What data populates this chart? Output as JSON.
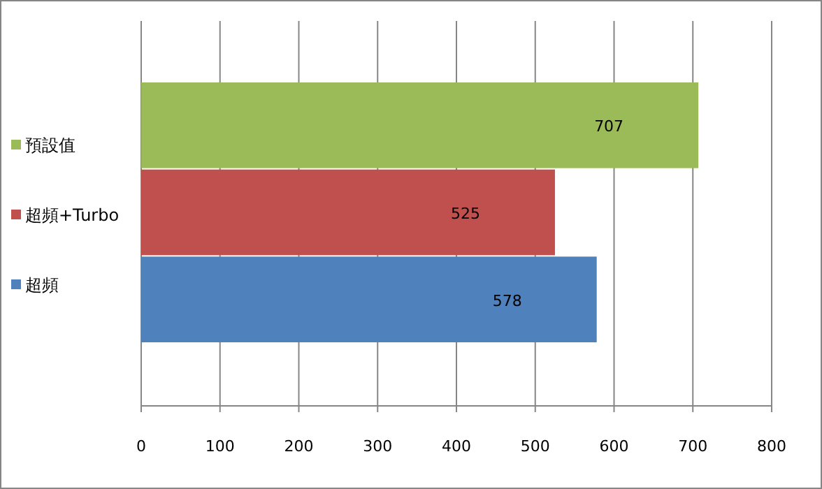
{
  "chart_data": {
    "type": "bar",
    "orientation": "horizontal",
    "categories": [
      null
    ],
    "series": [
      {
        "name": "預設值",
        "color": "#9bbb59",
        "values": [
          707
        ]
      },
      {
        "name": "超頻+Turbo",
        "color": "#c0504d",
        "values": [
          525
        ]
      },
      {
        "name": "超頻",
        "color": "#4f81bd",
        "values": [
          578
        ]
      }
    ],
    "xlim": [
      0,
      800
    ],
    "xticks": [
      0,
      100,
      200,
      300,
      400,
      500,
      600,
      700,
      800
    ],
    "grid": "x",
    "legend": "left",
    "data_labels": true
  }
}
